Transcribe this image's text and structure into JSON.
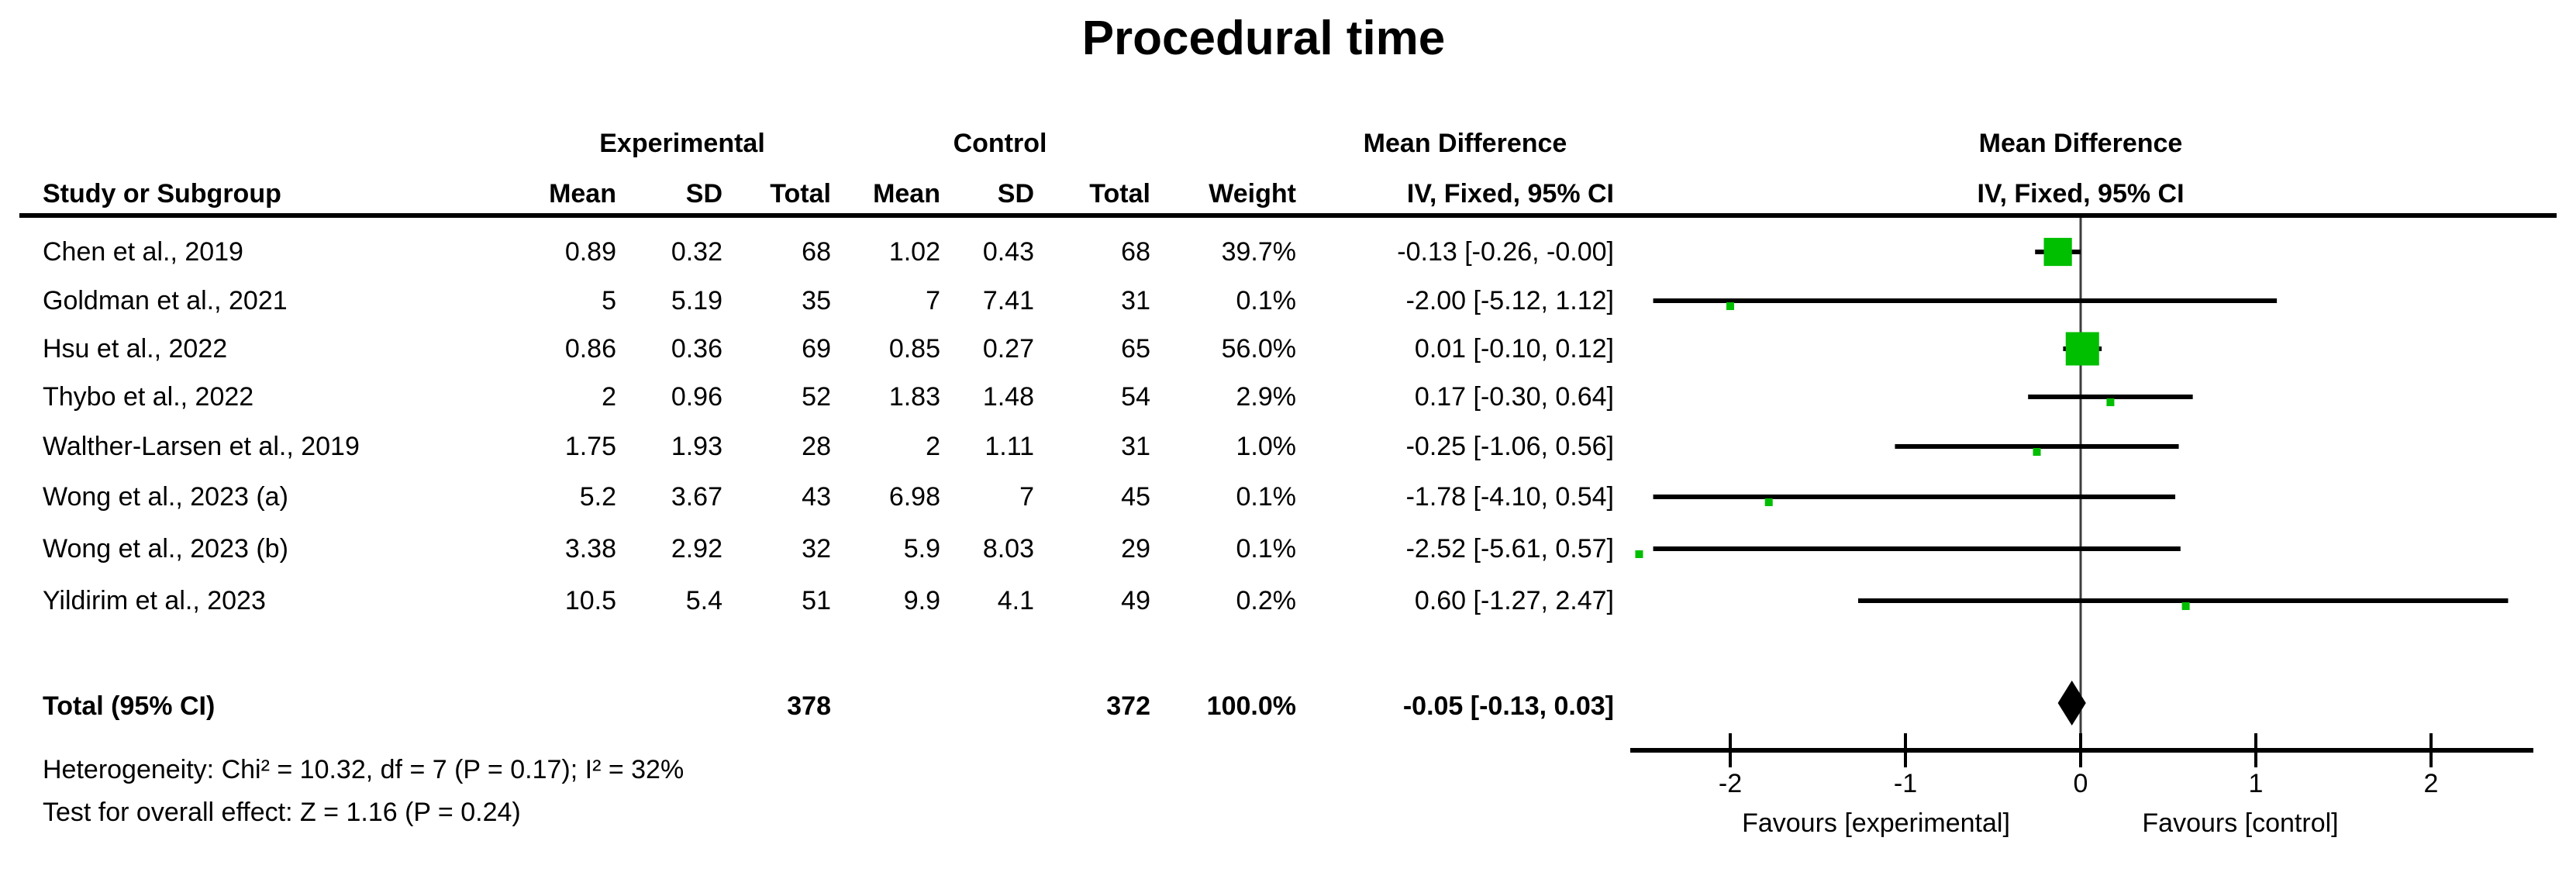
{
  "title": "Procedural time",
  "header": {
    "group_experimental": "Experimental",
    "group_control": "Control",
    "mean_difference_col": "Mean Difference",
    "mean_difference_plot_col": "Mean Difference",
    "study": "Study or Subgroup",
    "mean": "Mean",
    "sd": "SD",
    "total": "Total",
    "weight": "Weight",
    "method": "IV, Fixed, 95% CI"
  },
  "chart_data": {
    "type": "forest",
    "marker_color": "#00BE00",
    "studies": [
      {
        "label": "Chen et al., 2019",
        "exp_mean": "0.89",
        "exp_sd": "0.32",
        "exp_total": "68",
        "ctrl_mean": "1.02",
        "ctrl_sd": "0.43",
        "ctrl_total": "68",
        "weight": "39.7%",
        "md_text": "-0.13 [-0.26, -0.00]",
        "md": -0.13,
        "ci_low": -0.26,
        "ci_high": 0.0,
        "weight_val": 39.7
      },
      {
        "label": "Goldman et al., 2021",
        "exp_mean": "5",
        "exp_sd": "5.19",
        "exp_total": "35",
        "ctrl_mean": "7",
        "ctrl_sd": "7.41",
        "ctrl_total": "31",
        "weight": "0.1%",
        "md_text": "-2.00 [-5.12, 1.12]",
        "md": -2.0,
        "ci_low": -5.12,
        "ci_high": 1.12,
        "weight_val": 0.1
      },
      {
        "label": "Hsu et al., 2022",
        "exp_mean": "0.86",
        "exp_sd": "0.36",
        "exp_total": "69",
        "ctrl_mean": "0.85",
        "ctrl_sd": "0.27",
        "ctrl_total": "65",
        "weight": "56.0%",
        "md_text": "0.01 [-0.10, 0.12]",
        "md": 0.01,
        "ci_low": -0.1,
        "ci_high": 0.12,
        "weight_val": 56.0
      },
      {
        "label": "Thybo et al., 2022",
        "exp_mean": "2",
        "exp_sd": "0.96",
        "exp_total": "52",
        "ctrl_mean": "1.83",
        "ctrl_sd": "1.48",
        "ctrl_total": "54",
        "weight": "2.9%",
        "md_text": "0.17 [-0.30, 0.64]",
        "md": 0.17,
        "ci_low": -0.3,
        "ci_high": 0.64,
        "weight_val": 2.9
      },
      {
        "label": "Walther-Larsen et al., 2019",
        "exp_mean": "1.75",
        "exp_sd": "1.93",
        "exp_total": "28",
        "ctrl_mean": "2",
        "ctrl_sd": "1.11",
        "ctrl_total": "31",
        "weight": "1.0%",
        "md_text": "-0.25 [-1.06, 0.56]",
        "md": -0.25,
        "ci_low": -1.06,
        "ci_high": 0.56,
        "weight_val": 1.0
      },
      {
        "label": "Wong et al., 2023 (a)",
        "exp_mean": "5.2",
        "exp_sd": "3.67",
        "exp_total": "43",
        "ctrl_mean": "6.98",
        "ctrl_sd": "7",
        "ctrl_total": "45",
        "weight": "0.1%",
        "md_text": "-1.78 [-4.10, 0.54]",
        "md": -1.78,
        "ci_low": -4.1,
        "ci_high": 0.54,
        "weight_val": 0.1
      },
      {
        "label": "Wong et al., 2023 (b)",
        "exp_mean": "3.38",
        "exp_sd": "2.92",
        "exp_total": "32",
        "ctrl_mean": "5.9",
        "ctrl_sd": "8.03",
        "ctrl_total": "29",
        "weight": "0.1%",
        "md_text": "-2.52 [-5.61, 0.57]",
        "md": -2.52,
        "ci_low": -5.61,
        "ci_high": 0.57,
        "weight_val": 0.1
      },
      {
        "label": "Yildirim et al., 2023",
        "exp_mean": "10.5",
        "exp_sd": "5.4",
        "exp_total": "51",
        "ctrl_mean": "9.9",
        "ctrl_sd": "4.1",
        "ctrl_total": "49",
        "weight": "0.2%",
        "md_text": "0.60 [-1.27, 2.47]",
        "md": 0.6,
        "ci_low": -1.27,
        "ci_high": 2.47,
        "weight_val": 0.2
      }
    ],
    "total": {
      "label": "Total (95% CI)",
      "exp_total": "378",
      "ctrl_total": "372",
      "weight": "100.0%",
      "md_text": "-0.05 [-0.13, 0.03]",
      "md": -0.05,
      "ci_low": -0.13,
      "ci_high": 0.03
    },
    "axis": {
      "ticks": [
        -2,
        -1,
        0,
        1,
        2
      ],
      "label_left": "Favours [experimental]",
      "label_right": "Favours [control]"
    },
    "footer": {
      "heterogeneity": "Heterogeneity: Chi² = 10.32, df = 7 (P = 0.17); I² = 32%",
      "overall_effect": "Test for overall effect: Z = 1.16 (P = 0.24)"
    }
  }
}
